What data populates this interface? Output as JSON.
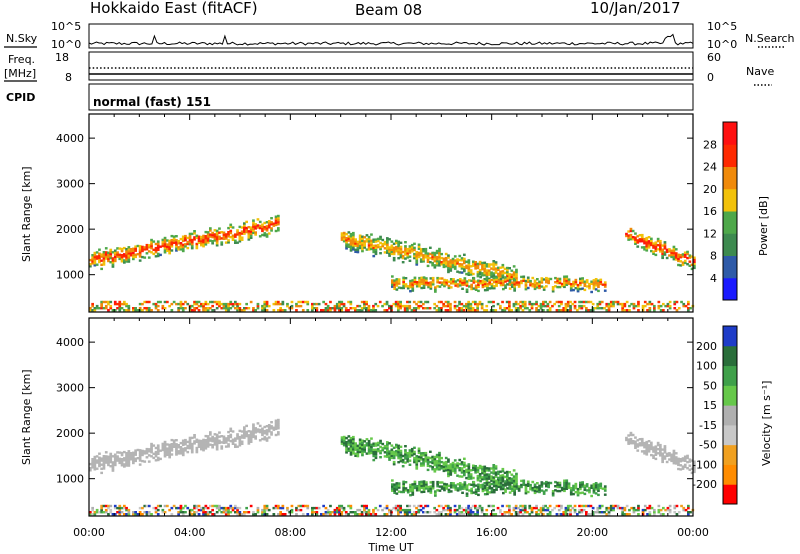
{
  "header": {
    "station": "Hokkaido East (fitACF)",
    "beam": "Beam 08",
    "date": "10/Jan/2017"
  },
  "top_panels": {
    "nsky_label": "N.Sky",
    "nsky_ticks": [
      "10^5",
      "10^0"
    ],
    "nsearch_label": "N.Search",
    "nsearch_ticks": [
      "10^5",
      "10^0"
    ],
    "freq_label_1": "Freq.",
    "freq_label_2": "[MHz]",
    "freq_ticks": [
      "18",
      "8"
    ],
    "nave_label": "Nave",
    "nave_ticks": [
      "60",
      "0"
    ],
    "cpid_label": "CPID",
    "cpid_text": "normal (fast) 151"
  },
  "chart_data": [
    {
      "type": "heatmap",
      "name": "power",
      "ylabel": "Slant Range [km]",
      "xlabel": "Time UT",
      "ylim": [
        180,
        4530
      ],
      "yticks": [
        "1000",
        "2000",
        "3000",
        "4000"
      ],
      "xticks": [
        "00:00",
        "04:00",
        "08:00",
        "12:00",
        "16:00",
        "20:00",
        "00:00"
      ],
      "colorbar_label": "Power [dB]",
      "colorbar_ticks": [
        "4",
        "8",
        "12",
        "16",
        "20",
        "24",
        "28"
      ],
      "colors": [
        "#1a1aff",
        "#2e5aa8",
        "#3d8a4f",
        "#4ea84a",
        "#f2c20a",
        "#f08a0a",
        "#ff2a00",
        "#ff1010"
      ],
      "echo_bands": [
        {
          "t0": 0.0,
          "t1": 7.5,
          "r_start": 1300,
          "r_end": 2100,
          "width": 180,
          "intensity": 0.85
        },
        {
          "t0": 10.0,
          "t1": 17.0,
          "r_start": 1800,
          "r_end": 950,
          "width": 200,
          "intensity": 0.72
        },
        {
          "t0": 12.0,
          "t1": 20.5,
          "r_start": 800,
          "r_end": 780,
          "width": 130,
          "intensity": 0.78
        },
        {
          "t0": 21.3,
          "t1": 24.0,
          "r_start": 1900,
          "r_end": 1250,
          "width": 150,
          "intensity": 0.9
        }
      ]
    },
    {
      "type": "heatmap",
      "name": "velocity",
      "ylabel": "Slant Range [km]",
      "xlabel": "Time UT",
      "ylim": [
        180,
        4530
      ],
      "yticks": [
        "1000",
        "2000",
        "3000",
        "4000"
      ],
      "xticks": [
        "00:00",
        "04:00",
        "08:00",
        "12:00",
        "16:00",
        "20:00",
        "00:00"
      ],
      "colorbar_label": "Velocity [m s⁻¹]",
      "colorbar_ticks": [
        "200",
        "100",
        "50",
        "15",
        "-15",
        "-50",
        "-100",
        "-200"
      ],
      "colors": [
        "#1e3cc8",
        "#2a6e3a",
        "#3fa04a",
        "#66c84a",
        "#b0b0b0",
        "#c8c8c8",
        "#f0a020",
        "#ff8c00",
        "#ff0000"
      ],
      "ground_scatter_color": "#b4b4b4"
    }
  ],
  "xaxis_title": "Time UT"
}
